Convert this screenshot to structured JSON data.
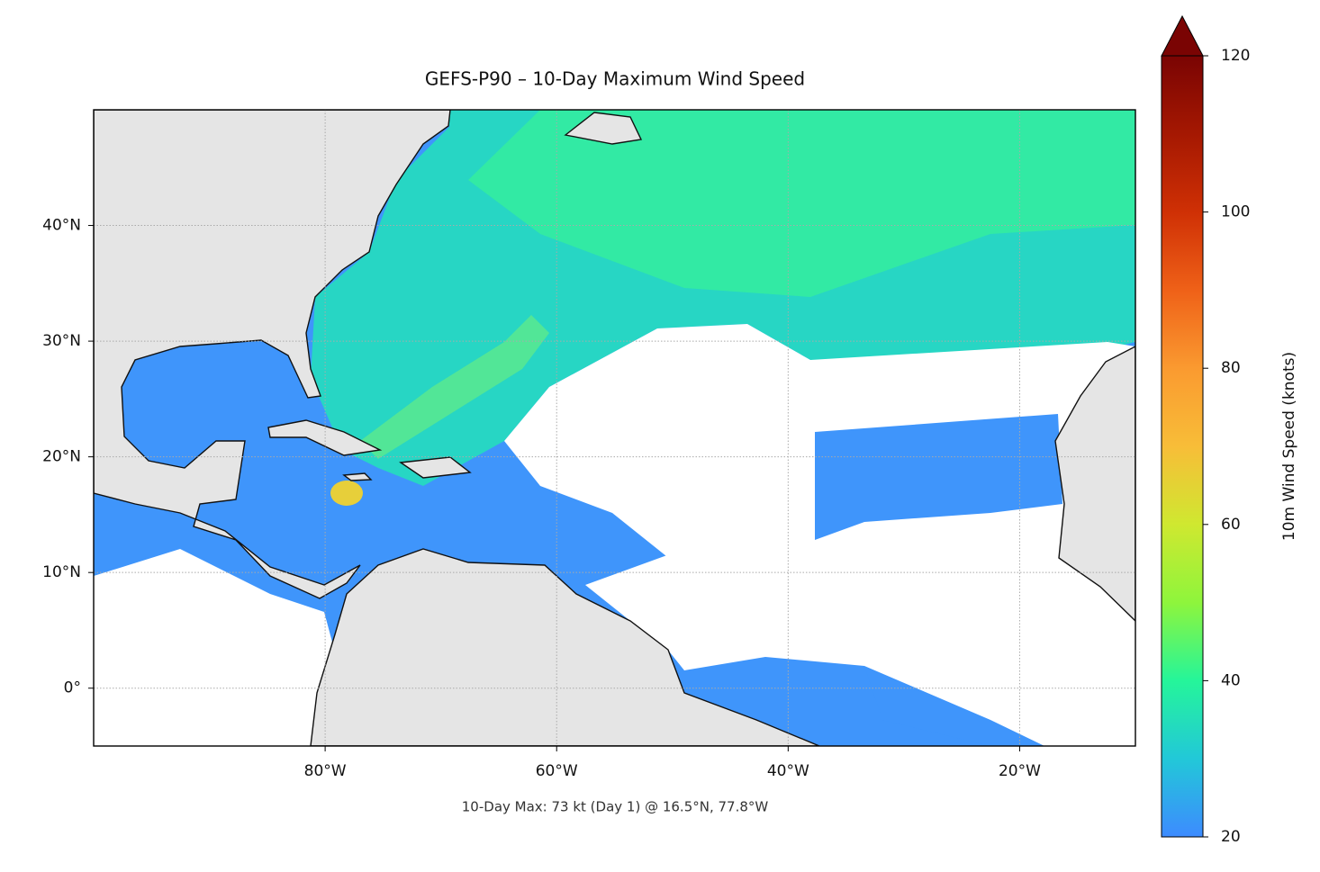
{
  "map": {
    "title": "GEFS-P90 – 10-Day Maximum Wind Speed",
    "annotation": "10-Day Max: 73 kt (Day 1) @ 16.5°N, 77.8°W",
    "xlim": [
      -100,
      -10
    ],
    "ylim": [
      -5,
      50
    ],
    "xticks": [
      {
        "value": -80,
        "label": "80°W"
      },
      {
        "value": -60,
        "label": "60°W"
      },
      {
        "value": -40,
        "label": "40°W"
      },
      {
        "value": -20,
        "label": "20°W"
      }
    ],
    "yticks": [
      {
        "value": 0,
        "label": "0°"
      },
      {
        "value": 10,
        "label": "10°N"
      },
      {
        "value": 20,
        "label": "20°N"
      },
      {
        "value": 30,
        "label": "30°N"
      },
      {
        "value": 40,
        "label": "40°N"
      }
    ],
    "grid": true,
    "colorbar": {
      "label": "10m Wind Speed (knots)",
      "lim": [
        20,
        120
      ],
      "ticks": [
        20,
        40,
        60,
        80,
        100,
        120
      ],
      "colors": [
        "#3d8bff",
        "#22c8d8",
        "#25f59a",
        "#8ef53c",
        "#cfe830",
        "#f8bd38",
        "#fa9a30",
        "#ef6118",
        "#cf3005",
        "#a51802",
        "#7a0403"
      ],
      "extend": "max"
    }
  }
}
